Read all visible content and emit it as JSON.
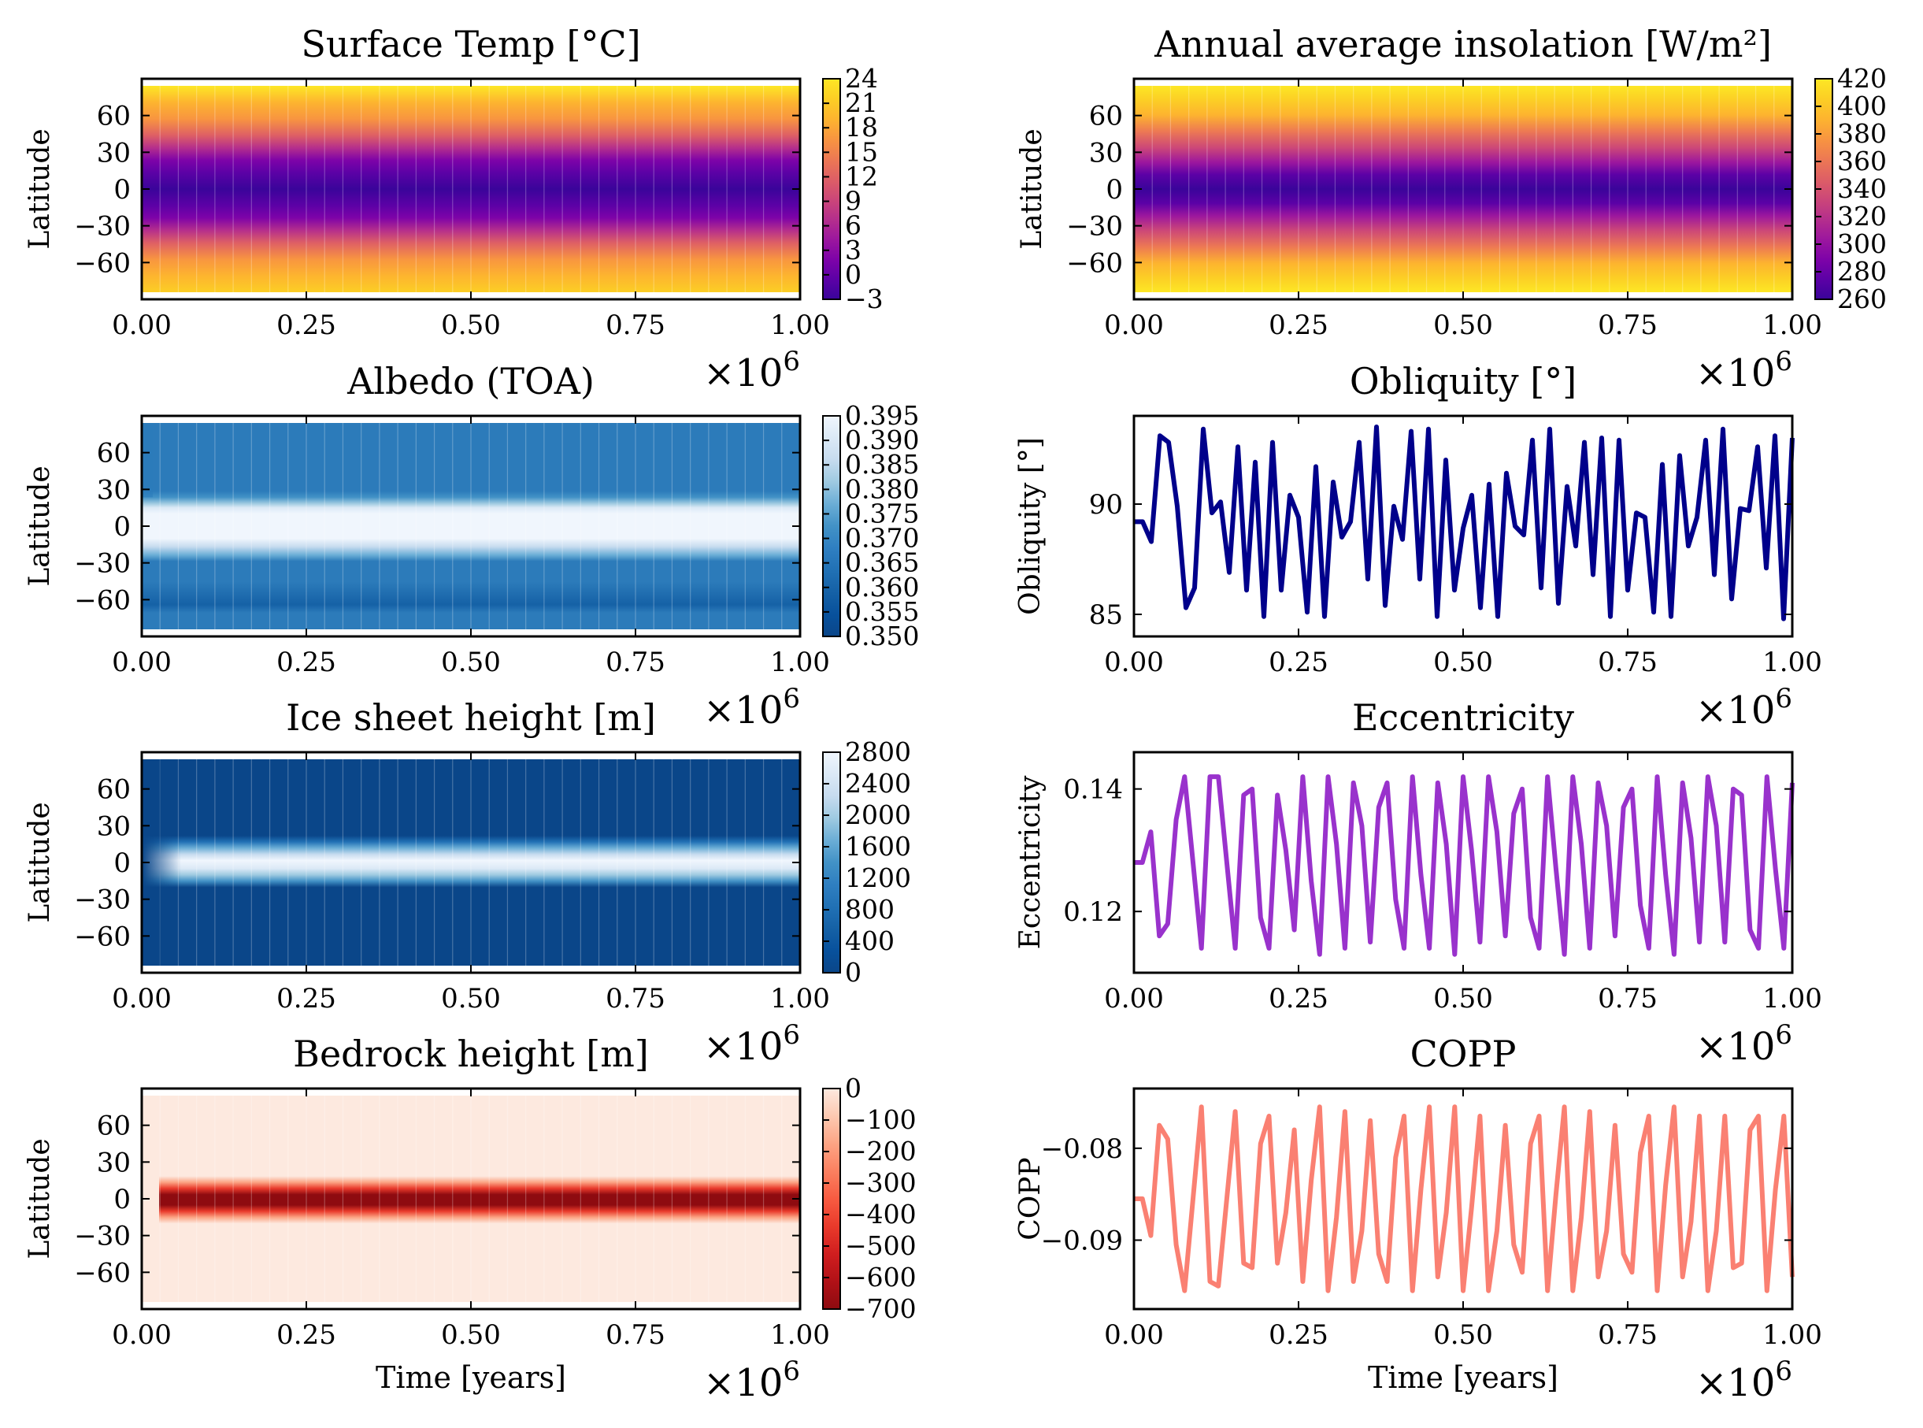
{
  "figure": {
    "background": "#ffffff",
    "multiplier_label": "×10",
    "multiplier_exp": "6"
  },
  "chart_data": [
    {
      "type": "heatmap",
      "title": "Surface Temp [°C]",
      "xlabel": "",
      "ylabel": "Latitude",
      "xlim": [
        0,
        1000000
      ],
      "ylim": [
        -90,
        90
      ],
      "xticks": [
        "0.00",
        "0.25",
        "0.50",
        "0.75",
        "1.00"
      ],
      "yticks": [
        "60",
        "30",
        "0",
        "−30",
        "−60"
      ],
      "ytick_values": [
        60,
        30,
        0,
        -30,
        -60
      ],
      "colormap": "plasma",
      "colorbar_ticks": [
        "24",
        "21",
        "18",
        "15",
        "12",
        "9",
        "6",
        "3",
        "0",
        "−3"
      ],
      "colorbar_range": [
        -3,
        24
      ],
      "field": "equator-low, poles-high, latitude banded, nearly constant in time"
    },
    {
      "type": "heatmap",
      "title": "Annual average insolation [W/m²]",
      "xlabel": "",
      "ylabel": "Latitude",
      "xlim": [
        0,
        1000000
      ],
      "ylim": [
        -90,
        90
      ],
      "xticks": [
        "0.00",
        "0.25",
        "0.50",
        "0.75",
        "1.00"
      ],
      "yticks": [
        "60",
        "30",
        "0",
        "−30",
        "−60"
      ],
      "ytick_values": [
        60,
        30,
        0,
        -30,
        -60
      ],
      "colormap": "plasma",
      "colorbar_ticks": [
        "420",
        "400",
        "380",
        "360",
        "340",
        "320",
        "300",
        "280",
        "260"
      ],
      "colorbar_range": [
        260,
        420
      ]
    },
    {
      "type": "heatmap",
      "title": "Albedo (TOA)",
      "xlabel": "",
      "ylabel": "Latitude",
      "xlim": [
        0,
        1000000
      ],
      "ylim": [
        -90,
        90
      ],
      "xticks": [
        "0.00",
        "0.25",
        "0.50",
        "0.75",
        "1.00"
      ],
      "yticks": [
        "60",
        "30",
        "0",
        "−30",
        "−60"
      ],
      "ytick_values": [
        60,
        30,
        0,
        -30,
        -60
      ],
      "colormap": "blues",
      "colorbar_ticks": [
        "0.395",
        "0.390",
        "0.385",
        "0.380",
        "0.375",
        "0.370",
        "0.365",
        "0.360",
        "0.355",
        "0.350"
      ],
      "colorbar_range": [
        0.35,
        0.395
      ]
    },
    {
      "type": "line",
      "title": "Obliquity [°]",
      "xlabel": "",
      "ylabel": "Obliquity [°]",
      "xlim": [
        0,
        1000000
      ],
      "ylim": [
        84,
        94
      ],
      "xticks": [
        "0.00",
        "0.25",
        "0.50",
        "0.75",
        "1.00"
      ],
      "yticks": [
        "90",
        "85"
      ],
      "ytick_values": [
        90,
        85
      ],
      "color": "#00008b",
      "series": [
        {
          "values": [
            89.2,
            89.2,
            88.3,
            93.1,
            92.8,
            89.9,
            85.3,
            86.2,
            93.4,
            89.6,
            90.1,
            86.9,
            92.6,
            86.1,
            91.9,
            84.9,
            92.8,
            86.1,
            90.4,
            89.4,
            85.1,
            91.7,
            84.9,
            91.0,
            88.5,
            89.2,
            92.8,
            86.6,
            93.5,
            85.4,
            89.9,
            88.4,
            93.3,
            86.6,
            93.4,
            84.9,
            92.0,
            86.1,
            88.9,
            90.4,
            85.3,
            90.9,
            84.9,
            91.4,
            89.0,
            88.6,
            92.9,
            86.2,
            93.4,
            85.5,
            90.8,
            88.1,
            92.8,
            86.8,
            93.0,
            84.9,
            92.9,
            86.1,
            89.6,
            89.4,
            85.1,
            91.8,
            84.9,
            92.2,
            88.1,
            89.4,
            92.9,
            86.8,
            93.4,
            85.7,
            89.8,
            89.7,
            92.6,
            87.1,
            93.1,
            84.8,
            93.0
          ]
        }
      ]
    },
    {
      "type": "heatmap",
      "title": "Ice sheet height [m]",
      "xlabel": "",
      "ylabel": "Latitude",
      "xlim": [
        0,
        1000000
      ],
      "ylim": [
        -90,
        90
      ],
      "xticks": [
        "0.00",
        "0.25",
        "0.50",
        "0.75",
        "1.00"
      ],
      "yticks": [
        "60",
        "30",
        "0",
        "−30",
        "−60"
      ],
      "ytick_values": [
        60,
        30,
        0,
        -30,
        -60
      ],
      "colormap": "blues",
      "colorbar_ticks": [
        "2800",
        "2400",
        "2000",
        "1600",
        "1200",
        "800",
        "400",
        "0"
      ],
      "colorbar_range": [
        0,
        2800
      ]
    },
    {
      "type": "line",
      "title": "Eccentricity",
      "xlabel": "",
      "ylabel": "Eccentricity",
      "xlim": [
        0,
        1000000
      ],
      "ylim": [
        0.11,
        0.146
      ],
      "xticks": [
        "0.00",
        "0.25",
        "0.50",
        "0.75",
        "1.00"
      ],
      "yticks": [
        "0.14",
        "0.12"
      ],
      "ytick_values": [
        0.14,
        0.12
      ],
      "color": "#9932cc",
      "series": [
        {
          "values": [
            0.128,
            0.128,
            0.133,
            0.116,
            0.118,
            0.135,
            0.142,
            0.128,
            0.114,
            0.142,
            0.142,
            0.128,
            0.114,
            0.139,
            0.14,
            0.119,
            0.114,
            0.139,
            0.13,
            0.117,
            0.142,
            0.125,
            0.113,
            0.142,
            0.131,
            0.114,
            0.141,
            0.134,
            0.115,
            0.137,
            0.141,
            0.122,
            0.114,
            0.142,
            0.126,
            0.114,
            0.141,
            0.131,
            0.113,
            0.142,
            0.13,
            0.115,
            0.142,
            0.133,
            0.116,
            0.136,
            0.14,
            0.119,
            0.114,
            0.142,
            0.127,
            0.113,
            0.142,
            0.131,
            0.114,
            0.141,
            0.134,
            0.116,
            0.137,
            0.14,
            0.121,
            0.114,
            0.142,
            0.126,
            0.113,
            0.141,
            0.132,
            0.115,
            0.142,
            0.134,
            0.115,
            0.14,
            0.139,
            0.117,
            0.114,
            0.142,
            0.127,
            0.114,
            0.141
          ]
        }
      ]
    },
    {
      "type": "heatmap",
      "title": "Bedrock height [m]",
      "xlabel": "Time [years]",
      "ylabel": "Latitude",
      "xlim": [
        0,
        1000000
      ],
      "ylim": [
        -90,
        90
      ],
      "xticks": [
        "0.00",
        "0.25",
        "0.50",
        "0.75",
        "1.00"
      ],
      "yticks": [
        "60",
        "30",
        "0",
        "−30",
        "−60"
      ],
      "ytick_values": [
        60,
        30,
        0,
        -30,
        -60
      ],
      "colormap": "reds_r",
      "colorbar_ticks": [
        "0",
        "−100",
        "−200",
        "−300",
        "−400",
        "−500",
        "−600",
        "−700"
      ],
      "colorbar_range": [
        -700,
        0
      ]
    },
    {
      "type": "line",
      "title": "COPP",
      "xlabel": "Time [years]",
      "ylabel": "COPP",
      "xlim": [
        0,
        1000000
      ],
      "ylim": [
        -0.0975,
        -0.0735
      ],
      "xticks": [
        "0.00",
        "0.25",
        "0.50",
        "0.75",
        "1.00"
      ],
      "yticks": [
        "−0.08",
        "−0.09"
      ],
      "ytick_values": [
        -0.08,
        -0.09
      ],
      "color": "#fa8072",
      "series": [
        {
          "values": [
            -0.0855,
            -0.0855,
            -0.0895,
            -0.0775,
            -0.079,
            -0.0905,
            -0.0955,
            -0.0855,
            -0.0755,
            -0.0945,
            -0.095,
            -0.0855,
            -0.076,
            -0.0925,
            -0.093,
            -0.0795,
            -0.0765,
            -0.0925,
            -0.087,
            -0.078,
            -0.0945,
            -0.0835,
            -0.0755,
            -0.0955,
            -0.0875,
            -0.076,
            -0.0945,
            -0.089,
            -0.077,
            -0.0915,
            -0.0945,
            -0.081,
            -0.0765,
            -0.0955,
            -0.0845,
            -0.0755,
            -0.094,
            -0.087,
            -0.0755,
            -0.0955,
            -0.0865,
            -0.0765,
            -0.0955,
            -0.089,
            -0.0775,
            -0.0905,
            -0.0935,
            -0.0795,
            -0.0765,
            -0.0955,
            -0.085,
            -0.0755,
            -0.0955,
            -0.0875,
            -0.076,
            -0.094,
            -0.089,
            -0.0775,
            -0.0915,
            -0.0935,
            -0.0805,
            -0.0765,
            -0.0955,
            -0.084,
            -0.0755,
            -0.094,
            -0.088,
            -0.0765,
            -0.0955,
            -0.089,
            -0.0765,
            -0.093,
            -0.0925,
            -0.078,
            -0.0765,
            -0.0955,
            -0.0845,
            -0.0765,
            -0.094
          ]
        }
      ]
    }
  ]
}
